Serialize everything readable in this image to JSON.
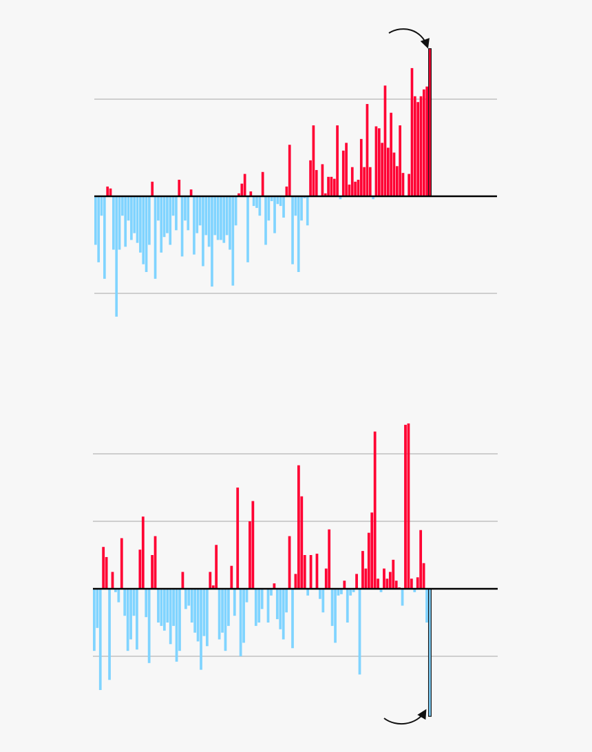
{
  "chart_data": [
    {
      "type": "bar",
      "values": [
        -0.5,
        -0.68,
        -0.2,
        -0.85,
        0.1,
        0.08,
        -0.55,
        -1.24,
        -0.55,
        -0.2,
        -0.52,
        -0.25,
        -0.45,
        -0.38,
        -0.48,
        -0.58,
        -0.7,
        -0.78,
        -0.5,
        0.15,
        -0.85,
        -0.25,
        -0.58,
        -0.42,
        -0.38,
        -0.5,
        -0.2,
        -0.35,
        0.17,
        -0.62,
        -0.25,
        -0.35,
        0.07,
        -0.6,
        -0.38,
        -0.3,
        -0.72,
        -0.4,
        -0.52,
        -0.93,
        -0.4,
        -0.45,
        -0.45,
        -0.48,
        -0.4,
        -0.55,
        -0.92,
        -0.3,
        0.03,
        0.13,
        0.23,
        -0.68,
        0.05,
        -0.1,
        -0.12,
        -0.2,
        0.25,
        -0.5,
        -0.25,
        -0.05,
        -0.38,
        -0.08,
        -0.1,
        -0.22,
        0.1,
        0.53,
        -0.7,
        -0.2,
        -0.78,
        -0.25,
        -0.02,
        -0.3,
        0.37,
        0.73,
        0.27,
        0.0,
        0.33,
        0.03,
        0.2,
        0.2,
        0.18,
        0.73,
        -0.03,
        0.47,
        0.55,
        0.12,
        0.3,
        0.15,
        0.17,
        0.59,
        0.3,
        0.95,
        0.3,
        -0.03,
        0.72,
        0.7,
        0.55,
        1.14,
        0.5,
        0.86,
        0.45,
        0.31,
        0.73,
        0.24,
        0.0,
        0.23,
        1.32,
        1.03,
        0.97,
        1.03,
        1.1,
        1.13,
        1.52
      ],
      "positive_color": "#ff0033",
      "negative_color": "#80d4ff",
      "highlight_last": true,
      "ylim": [
        -1.5,
        1.7
      ],
      "yticks": [
        -1,
        0,
        1
      ],
      "grid": true
    },
    {
      "type": "bar",
      "values": [
        -0.92,
        -0.58,
        -1.5,
        0.62,
        0.47,
        -1.35,
        0.25,
        -0.05,
        -0.2,
        0.75,
        -0.4,
        -0.92,
        -0.75,
        -0.4,
        -0.9,
        0.58,
        1.07,
        -0.42,
        -1.1,
        0.5,
        0.78,
        -0.5,
        -0.55,
        -0.62,
        -0.5,
        -0.82,
        -0.55,
        -1.08,
        -0.92,
        0.25,
        -0.3,
        -0.25,
        -0.5,
        -0.65,
        -0.78,
        -1.2,
        -0.7,
        -0.85,
        0.25,
        0.05,
        0.65,
        -0.75,
        -0.65,
        -0.92,
        -0.55,
        0.34,
        -0.4,
        1.5,
        -1.0,
        -0.8,
        -0.2,
        1.0,
        1.3,
        -0.55,
        -0.5,
        -0.3,
        0.0,
        -0.5,
        -0.1,
        0.08,
        -0.45,
        -0.6,
        -0.75,
        -0.35,
        0.78,
        -0.88,
        0.22,
        1.83,
        1.37,
        0.5,
        -0.1,
        0.5,
        0.0,
        0.52,
        -0.15,
        -0.35,
        0.3,
        0.88,
        -0.55,
        -0.8,
        -0.1,
        -0.08,
        0.12,
        -0.5,
        -0.1,
        -0.05,
        0.22,
        -1.27,
        0.56,
        0.3,
        0.83,
        1.13,
        2.33,
        0.15,
        -0.05,
        0.3,
        0.15,
        0.25,
        0.43,
        0.12,
        0.02,
        -0.25,
        2.43,
        2.45,
        0.15,
        -0.05,
        0.17,
        0.87,
        0.38,
        -0.5,
        -1.89
      ],
      "positive_color": "#ff0033",
      "negative_color": "#80d4ff",
      "highlight_last": true,
      "ylim": [
        -2,
        3
      ],
      "yticks": [
        -1,
        0,
        1,
        2
      ],
      "grid": true
    }
  ]
}
